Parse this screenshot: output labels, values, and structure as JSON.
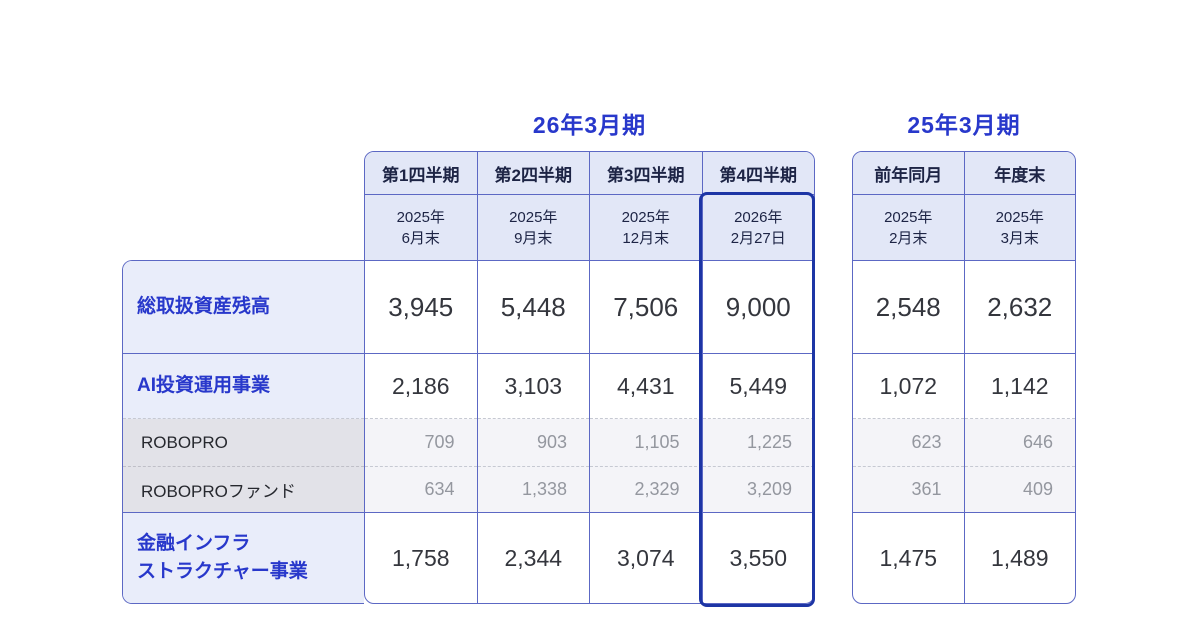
{
  "titles": {
    "fy2026": "26年3月期",
    "fy2025": "25年3月期"
  },
  "colors": {
    "border": "#5c68c4",
    "highlight_border": "#1d35a5",
    "header_bg": "#e2e7f7",
    "label_bg": "#e9edfa",
    "sub_label_bg": "#e2e2e8",
    "sub_data_bg": "#f4f4f8",
    "blue_text": "#2838cb",
    "gray_text": "#94979f"
  },
  "rows": [
    {
      "label": "総取扱資産残高",
      "type": "primary"
    },
    {
      "label": "AI投資運用事業",
      "type": "primary"
    },
    {
      "label": "ROBOPRO",
      "type": "sub"
    },
    {
      "label": "ROBOPROファンド",
      "type": "sub"
    },
    {
      "label": "金融インフラ\nストラクチャー事業",
      "type": "primary"
    }
  ],
  "main": {
    "columns": [
      {
        "quarter": "第1四半期",
        "date": "2025年\n6月末",
        "values": [
          "3,945",
          "2,186",
          "709",
          "634",
          "1,758"
        ]
      },
      {
        "quarter": "第2四半期",
        "date": "2025年\n9月末",
        "values": [
          "5,448",
          "3,103",
          "903",
          "1,338",
          "2,344"
        ]
      },
      {
        "quarter": "第3四半期",
        "date": "2025年\n12月末",
        "values": [
          "7,506",
          "4,431",
          "1,105",
          "2,329",
          "3,074"
        ]
      },
      {
        "quarter": "第4四半期",
        "date": "2026年\n2月27日",
        "values": [
          "9,000",
          "5,449",
          "1,225",
          "3,209",
          "3,550"
        ],
        "highlighted": true
      }
    ]
  },
  "right": {
    "columns": [
      {
        "period": "前年同月",
        "date": "2025年\n2月末",
        "values": [
          "2,548",
          "1,072",
          "623",
          "361",
          "1,475"
        ]
      },
      {
        "period": "年度末",
        "date": "2025年\n3月末",
        "values": [
          "2,632",
          "1,142",
          "646",
          "409",
          "1,489"
        ]
      }
    ]
  },
  "chart_data": {
    "type": "table",
    "title_groups": [
      "26年3月期",
      "25年3月期"
    ],
    "columns": [
      "第1四半期 2025年6月末",
      "第2四半期 2025年9月末",
      "第3四半期 2025年12月末",
      "第4四半期 2026年2月27日",
      "前年同月 2025年2月末",
      "年度末 2025年3月末"
    ],
    "rows": [
      {
        "label": "総取扱資産残高",
        "values": [
          3945,
          5448,
          7506,
          9000,
          2548,
          2632
        ]
      },
      {
        "label": "AI投資運用事業",
        "values": [
          2186,
          3103,
          4431,
          5449,
          1072,
          1142
        ]
      },
      {
        "label": "ROBOPRO",
        "values": [
          709,
          903,
          1105,
          1225,
          623,
          646
        ]
      },
      {
        "label": "ROBOPROファンド",
        "values": [
          634,
          1338,
          2329,
          3209,
          361,
          409
        ]
      },
      {
        "label": "金融インフラストラクチャー事業",
        "values": [
          1758,
          2344,
          3074,
          3550,
          1475,
          1489
        ]
      }
    ],
    "highlighted_column": "第4四半期 2026年2月27日"
  }
}
